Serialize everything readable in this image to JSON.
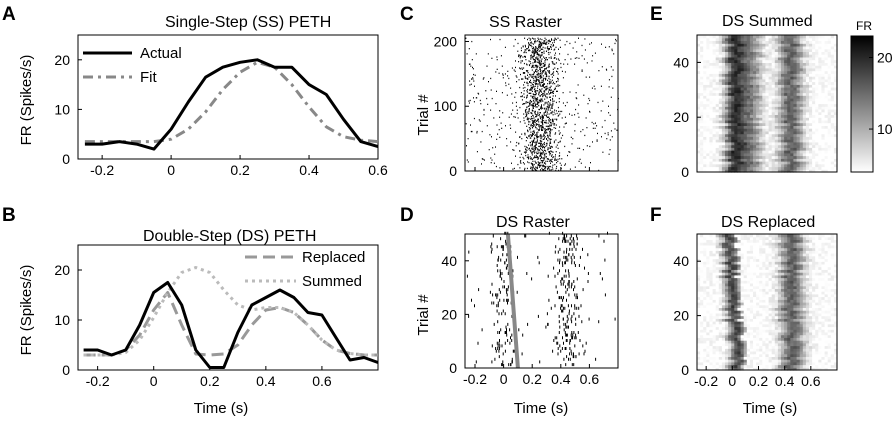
{
  "panels": {
    "A": {
      "letter": "A",
      "title": "Single-Step (SS) PETH",
      "ylabel": "FR (Spikes/s)"
    },
    "B": {
      "letter": "B",
      "title": "Double-Step (DS) PETH",
      "ylabel": "FR (Spikes/s)",
      "xlabel": "Time (s)"
    },
    "C": {
      "letter": "C",
      "title": "SS Raster",
      "ylabel": "Trial #"
    },
    "D": {
      "letter": "D",
      "title": "DS Raster",
      "ylabel": "Trial #",
      "xlabel": "Time (s)"
    },
    "E": {
      "letter": "E",
      "title": "DS Summed",
      "colorbar_label": "FR"
    },
    "F": {
      "letter": "F",
      "title": "DS Replaced",
      "xlabel": "Time (s)"
    }
  },
  "chart_data": [
    {
      "id": "A",
      "type": "line",
      "title": "Single-Step (SS) PETH",
      "xlabel": "",
      "ylabel": "FR (Spikes/s)",
      "xlim": [
        -0.27,
        0.6
      ],
      "ylim": [
        0,
        25
      ],
      "xticks": [
        -0.2,
        0,
        0.2,
        0.4,
        0.6
      ],
      "xtick_labels": [
        "-0.2",
        "0",
        "0.2",
        "0.4",
        "0.6"
      ],
      "yticks": [
        0,
        10,
        20
      ],
      "ytick_labels": [
        "0",
        "10",
        "20"
      ],
      "legend": "top-left",
      "series": [
        {
          "name": "Actual",
          "color": "#000000",
          "style": "solid",
          "x": [
            -0.25,
            -0.2,
            -0.15,
            -0.1,
            -0.05,
            0,
            0.05,
            0.1,
            0.15,
            0.2,
            0.25,
            0.3,
            0.35,
            0.4,
            0.45,
            0.5,
            0.55,
            0.6
          ],
          "y": [
            3,
            3,
            3.5,
            3,
            2,
            6,
            11.5,
            16.5,
            18.5,
            19.5,
            20,
            18.5,
            18.5,
            15,
            13,
            8,
            3.5,
            2.5
          ]
        },
        {
          "name": "Fit",
          "color": "#888888",
          "style": "dashdot",
          "x": [
            -0.25,
            -0.2,
            -0.15,
            -0.1,
            -0.05,
            0,
            0.05,
            0.1,
            0.15,
            0.2,
            0.25,
            0.3,
            0.35,
            0.4,
            0.45,
            0.5,
            0.55,
            0.6
          ],
          "y": [
            3.5,
            3.5,
            3.5,
            3.5,
            3.5,
            4,
            6,
            9.5,
            14,
            17.5,
            19.5,
            18.5,
            15,
            10.5,
            6.5,
            4.5,
            3.8,
            3.5
          ]
        }
      ]
    },
    {
      "id": "B",
      "type": "line",
      "title": "Double-Step (DS) PETH",
      "xlabel": "Time (s)",
      "ylabel": "FR (Spikes/s)",
      "xlim": [
        -0.27,
        0.8
      ],
      "ylim": [
        0,
        25
      ],
      "xticks": [
        -0.2,
        0,
        0.2,
        0.4,
        0.6
      ],
      "xtick_labels": [
        "-0.2",
        "0",
        "0.2",
        "0.4",
        "0.6"
      ],
      "yticks": [
        0,
        10,
        20
      ],
      "ytick_labels": [
        "0",
        "10",
        "20"
      ],
      "legend": "top-right",
      "series": [
        {
          "name": "Actual",
          "color": "#000000",
          "style": "solid",
          "x": [
            -0.25,
            -0.2,
            -0.15,
            -0.1,
            -0.05,
            0,
            0.05,
            0.1,
            0.15,
            0.2,
            0.25,
            0.3,
            0.35,
            0.4,
            0.45,
            0.5,
            0.55,
            0.6,
            0.65,
            0.7,
            0.75,
            0.8
          ],
          "y": [
            4,
            4,
            3,
            4,
            9,
            15.5,
            17.5,
            13,
            4,
            0.5,
            0.5,
            7.5,
            13,
            14.5,
            16,
            14.5,
            11.5,
            11,
            6.5,
            2,
            2.5,
            1.5
          ]
        },
        {
          "name": "Replaced",
          "color": "#999999",
          "style": "dash",
          "x": [
            -0.25,
            -0.2,
            -0.15,
            -0.1,
            -0.05,
            0,
            0.05,
            0.1,
            0.15,
            0.2,
            0.25,
            0.3,
            0.35,
            0.4,
            0.45,
            0.5,
            0.55,
            0.6,
            0.65,
            0.7,
            0.75,
            0.8
          ],
          "y": [
            3,
            3,
            3,
            4,
            7,
            12,
            15.5,
            9,
            3.2,
            3,
            3.2,
            5,
            9,
            12,
            12.5,
            11.5,
            9,
            6,
            4,
            3.3,
            3,
            3
          ]
        },
        {
          "name": "Summed",
          "color": "#bbbbbb",
          "style": "dot",
          "x": [
            -0.25,
            -0.2,
            -0.15,
            -0.1,
            -0.05,
            0,
            0.05,
            0.1,
            0.15,
            0.2,
            0.25,
            0.3,
            0.35,
            0.4,
            0.45,
            0.5,
            0.55,
            0.6,
            0.65,
            0.7,
            0.75,
            0.8
          ],
          "y": [
            3,
            3,
            3,
            3.5,
            6,
            10.5,
            15.5,
            19.5,
            20.5,
            19.5,
            16,
            13,
            12,
            12.5,
            12.5,
            11.5,
            9,
            6,
            4,
            3.3,
            3,
            3
          ]
        }
      ]
    },
    {
      "id": "C",
      "type": "scatter",
      "title": "SS Raster",
      "ylabel": "Trial #",
      "xlim": [
        -0.27,
        0.8
      ],
      "ylim": [
        0,
        210
      ],
      "xticks": [
        -0.2,
        0,
        0.2,
        0.4,
        0.6
      ],
      "yticks": [
        0,
        100,
        200
      ],
      "ytick_labels": [
        "0",
        "100",
        "200"
      ],
      "trials": 205,
      "spike_density_peak_s": 0.25
    },
    {
      "id": "D",
      "type": "scatter",
      "title": "DS Raster",
      "ylabel": "Trial #",
      "xlabel": "Time (s)",
      "xlim": [
        -0.27,
        0.8
      ],
      "ylim": [
        0,
        50
      ],
      "xticks": [
        -0.2,
        0,
        0.2,
        0.4,
        0.6
      ],
      "xtick_labels": [
        "-0.2",
        "0",
        "0.2",
        "0.4",
        "0.6"
      ],
      "yticks": [
        0,
        20,
        40
      ],
      "ytick_labels": [
        "0",
        "20",
        "40"
      ],
      "trials": 50,
      "second_step_time_start_s": 0.03,
      "second_step_time_end_s": 0.1,
      "marker_color": "#888888"
    },
    {
      "id": "E",
      "type": "heatmap",
      "title": "DS Summed",
      "xlim": [
        -0.27,
        0.8
      ],
      "ylim": [
        0,
        50
      ],
      "yticks": [
        0,
        20,
        40
      ],
      "ytick_labels": [
        "0",
        "20",
        "40"
      ],
      "colorbar": {
        "label": "FR",
        "ticks": [
          10,
          20
        ],
        "tick_labels": [
          "10",
          "20"
        ],
        "range": [
          4,
          23
        ]
      }
    },
    {
      "id": "F",
      "type": "heatmap",
      "title": "DS Replaced",
      "xlabel": "Time (s)",
      "xlim": [
        -0.27,
        0.8
      ],
      "ylim": [
        0,
        50
      ],
      "xticks": [
        -0.2,
        0,
        0.2,
        0.4,
        0.6
      ],
      "xtick_labels": [
        "-0.2",
        "0",
        "0.2",
        "0.4",
        "0.6"
      ],
      "yticks": [
        0,
        20,
        40
      ],
      "ytick_labels": [
        "0",
        "20",
        "40"
      ]
    }
  ]
}
